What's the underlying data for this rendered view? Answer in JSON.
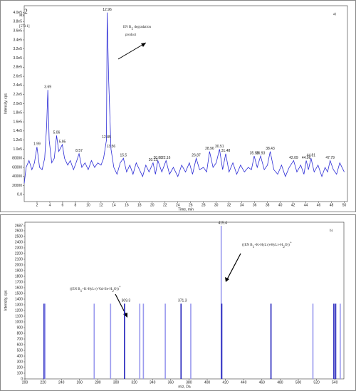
{
  "chart_data": [
    {
      "type": "line",
      "panel_label": "a)",
      "title": "MS",
      "title_sup": "2",
      "subtitle": "[573.1]",
      "xlabel": "Time, min",
      "ylabel": "Intensity, cps",
      "annotation": [
        [
          {
            "text": "EN B",
            "shift": "none"
          },
          {
            "text": "1",
            "shift": "sub"
          },
          {
            "text": " degradation",
            "shift": "none"
          }
        ],
        [
          {
            "text": "product",
            "shift": "none"
          }
        ]
      ],
      "xlim": [
        0,
        50.5
      ],
      "ylim": [
        -15000,
        415000
      ],
      "xticks": [
        2,
        4,
        6,
        8,
        10,
        12,
        14,
        16,
        18,
        20,
        22,
        24,
        26,
        28,
        30,
        32,
        34,
        36,
        38,
        40,
        42,
        44,
        46,
        48,
        50
      ],
      "yticks": [
        {
          "value": 0,
          "label": "0.0"
        },
        20000,
        40000,
        60000,
        80000,
        {
          "value": 100000,
          "label": "1.0e5"
        },
        {
          "value": 120000,
          "label": "1.2e5"
        },
        {
          "value": 140000,
          "label": "1.4e5"
        },
        {
          "value": 160000,
          "label": "1.6e5"
        },
        {
          "value": 180000,
          "label": "1.8e5"
        },
        {
          "value": 200000,
          "label": "2.0e5"
        },
        {
          "value": 220000,
          "label": "2.2e5"
        },
        {
          "value": 240000,
          "label": "2.4e5"
        },
        {
          "value": 260000,
          "label": "2.6e5"
        },
        {
          "value": 280000,
          "label": "2.8e5"
        },
        {
          "value": 300000,
          "label": "3.0e5"
        },
        {
          "value": 320000,
          "label": "3.2e5"
        },
        {
          "value": 340000,
          "label": "3.4e5"
        },
        {
          "value": 360000,
          "label": "3.6e5"
        },
        {
          "value": 380000,
          "label": "3.8e5"
        },
        {
          "value": 400000,
          "label": "4.0e5"
        }
      ],
      "x": [
        0,
        0.3,
        0.75,
        1.2,
        1.6,
        1.99,
        2.4,
        2.8,
        3.2,
        3.5,
        3.69,
        3.9,
        4.3,
        4.7,
        5.06,
        5.4,
        5.95,
        6.3,
        6.8,
        7.2,
        7.7,
        8.1,
        8.57,
        9.0,
        9.5,
        10.0,
        10.5,
        11.0,
        11.5,
        12.0,
        12.4,
        12.85,
        12.96,
        13.2,
        13.56,
        14.0,
        14.5,
        15.0,
        15.5,
        16.0,
        16.5,
        17.0,
        17.5,
        18.0,
        18.5,
        19.0,
        19.5,
        20.13,
        20.5,
        20.88,
        21.5,
        22.16,
        22.7,
        23.3,
        24.0,
        24.6,
        25.2,
        25.8,
        26.3,
        26.87,
        27.4,
        28.0,
        28.5,
        28.96,
        29.5,
        30.0,
        30.51,
        31.0,
        31.48,
        32.0,
        32.6,
        33.2,
        33.8,
        34.4,
        35.0,
        35.5,
        35.93,
        36.4,
        36.93,
        37.5,
        38.0,
        38.43,
        39.0,
        39.6,
        40.2,
        40.8,
        41.4,
        42.09,
        42.6,
        43.2,
        43.7,
        44.06,
        44.4,
        44.81,
        45.3,
        45.9,
        46.5,
        47.0,
        47.4,
        47.79,
        48.3,
        48.8,
        49.3,
        50
      ],
      "series": [
        {
          "color": "#2b2bd6",
          "values": [
            25000,
            60000,
            75000,
            55000,
            70000,
            105000,
            60000,
            55000,
            80000,
            150000,
            230000,
            120000,
            70000,
            80000,
            130000,
            95000,
            110000,
            80000,
            65000,
            75000,
            55000,
            70000,
            90000,
            60000,
            70000,
            55000,
            75000,
            60000,
            70000,
            65000,
            80000,
            120000,
            400000,
            250000,
            100000,
            60000,
            45000,
            70000,
            80000,
            50000,
            65000,
            45000,
            70000,
            55000,
            40000,
            65000,
            50000,
            70000,
            45000,
            75000,
            50000,
            75000,
            45000,
            60000,
            40000,
            65000,
            50000,
            70000,
            45000,
            80000,
            55000,
            60000,
            50000,
            95000,
            60000,
            70000,
            100000,
            55000,
            90000,
            50000,
            70000,
            45000,
            65000,
            50000,
            60000,
            55000,
            85000,
            60000,
            85000,
            55000,
            65000,
            95000,
            55000,
            45000,
            65000,
            40000,
            60000,
            75000,
            50000,
            65000,
            45000,
            75000,
            55000,
            80000,
            50000,
            65000,
            40000,
            60000,
            50000,
            75000,
            55000,
            45000,
            70000,
            50000
          ]
        }
      ],
      "peak_labels": [
        1.99,
        3.69,
        5.06,
        5.95,
        8.57,
        12.85,
        12.96,
        13.56,
        15.5,
        20.13,
        20.88,
        22.16,
        26.87,
        28.96,
        30.51,
        31.48,
        35.93,
        36.93,
        38.43,
        42.09,
        44.06,
        44.81,
        47.79
      ]
    },
    {
      "type": "stem",
      "panel_label": "b)",
      "xlabel": "m/z, Da",
      "ylabel": "Intensity, cps",
      "annotations": [
        [
          {
            "text": "((EN B",
            "shift": "none"
          },
          {
            "text": "1",
            "shift": "sub"
          },
          {
            "text": "+K-HyLv)-Val-Ile-H",
            "shift": "none"
          },
          {
            "text": "2",
            "shift": "sub"
          },
          {
            "text": "O))",
            "shift": "none"
          },
          {
            "text": "+",
            "shift": "sup"
          }
        ],
        [
          {
            "text": "((EN B",
            "shift": "none"
          },
          {
            "text": "1",
            "shift": "sub"
          },
          {
            "text": "+K-HyLv)-HyLv-H",
            "shift": "none"
          },
          {
            "text": "2",
            "shift": "sub"
          },
          {
            "text": "O))",
            "shift": "none"
          },
          {
            "text": "+",
            "shift": "sup"
          }
        ]
      ],
      "xlim": [
        200,
        550
      ],
      "ylim": [
        0,
        2750
      ],
      "xticks": [
        200,
        220,
        240,
        260,
        280,
        300,
        320,
        340,
        360,
        380,
        400,
        420,
        440,
        460,
        480,
        500,
        520,
        540
      ],
      "yticks": [
        0,
        100,
        200,
        300,
        400,
        500,
        600,
        700,
        800,
        900,
        1000,
        1100,
        1200,
        1300,
        1400,
        1500,
        1600,
        1700,
        1800,
        1900,
        2000,
        2100,
        2200,
        2300,
        2400,
        2500,
        2600,
        2687
      ],
      "x": [
        221,
        222,
        276,
        294,
        309.3,
        326,
        330,
        354,
        371.3,
        382,
        415.4,
        416,
        470,
        516,
        539,
        541,
        546
      ],
      "values": [
        1320,
        1320,
        1320,
        1320,
        1320,
        1320,
        1320,
        1320,
        1320,
        1320,
        2687,
        1320,
        1320,
        1320,
        1320,
        1320,
        1320
      ],
      "colors": [
        "#2222bb",
        "#9999ee",
        "#9999ee",
        "#9999ee",
        "#2222bb",
        "#9999ee",
        "#9999ee",
        "#9999ee",
        "#2222bb",
        "#9999ee",
        "#9999ee",
        "#2222bb",
        "#2222bb",
        "#9999ee",
        "#2222bb",
        "#2222bb",
        "#9999ee"
      ],
      "peak_labels": [
        309.3,
        371.3,
        415.4
      ]
    }
  ]
}
